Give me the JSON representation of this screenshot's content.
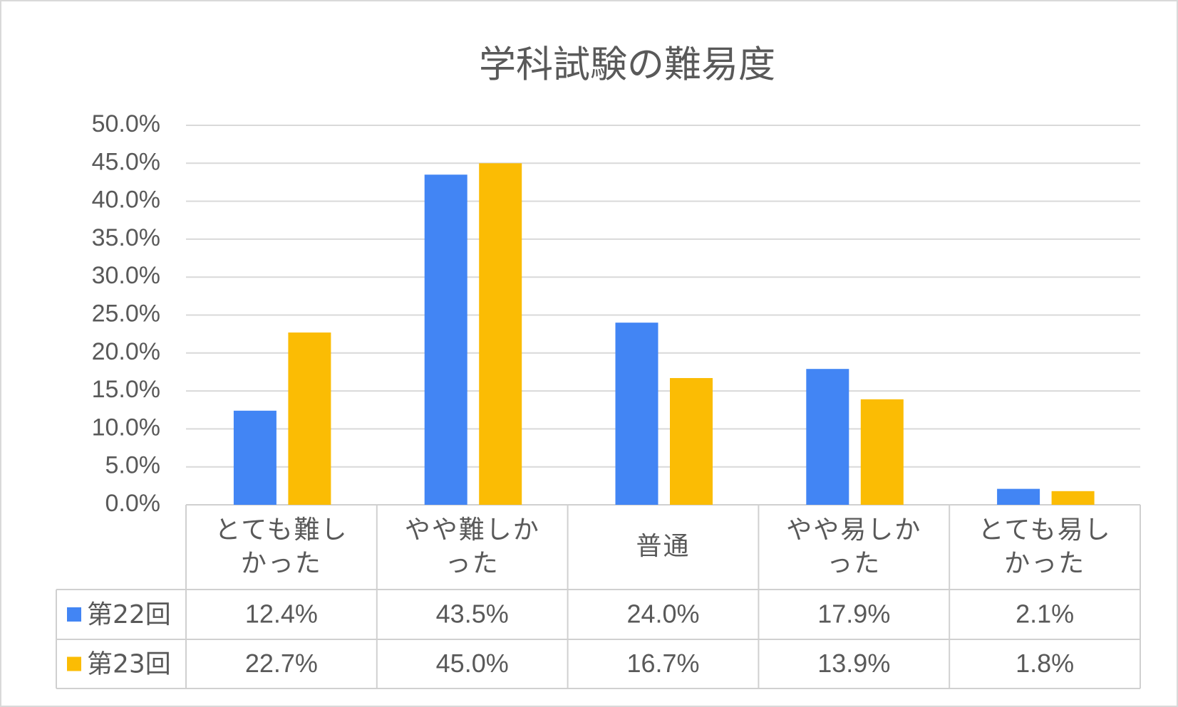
{
  "chart_data": {
    "type": "bar",
    "title": "学科試験の難易度",
    "categories": [
      "とても難しかった",
      "やや難しかった",
      "普通",
      "やや易しかった",
      "とても易しかった"
    ],
    "series": [
      {
        "name": "第22回",
        "color": "#4285f4",
        "values": [
          12.4,
          43.5,
          24.0,
          17.9,
          2.1
        ],
        "value_labels": [
          "12.4%",
          "43.5%",
          "24.0%",
          "17.9%",
          "2.1%"
        ]
      },
      {
        "name": "第23回",
        "color": "#fbbc04",
        "values": [
          22.7,
          45.0,
          16.7,
          13.9,
          1.8
        ],
        "value_labels": [
          "22.7%",
          "45.0%",
          "16.7%",
          "13.9%",
          "1.8%"
        ]
      }
    ],
    "ylim": [
      0,
      50
    ],
    "yticks": [
      {
        "value": 0,
        "label": "0.0%"
      },
      {
        "value": 5,
        "label": "5.0%"
      },
      {
        "value": 10,
        "label": "10.0%"
      },
      {
        "value": 15,
        "label": "15.0%"
      },
      {
        "value": 20,
        "label": "20.0%"
      },
      {
        "value": 25,
        "label": "25.0%"
      },
      {
        "value": 30,
        "label": "30.0%"
      },
      {
        "value": 35,
        "label": "35.0%"
      },
      {
        "value": 40,
        "label": "40.0%"
      },
      {
        "value": 45,
        "label": "45.0%"
      },
      {
        "value": 50,
        "label": "50.0%"
      }
    ],
    "grid": true
  }
}
